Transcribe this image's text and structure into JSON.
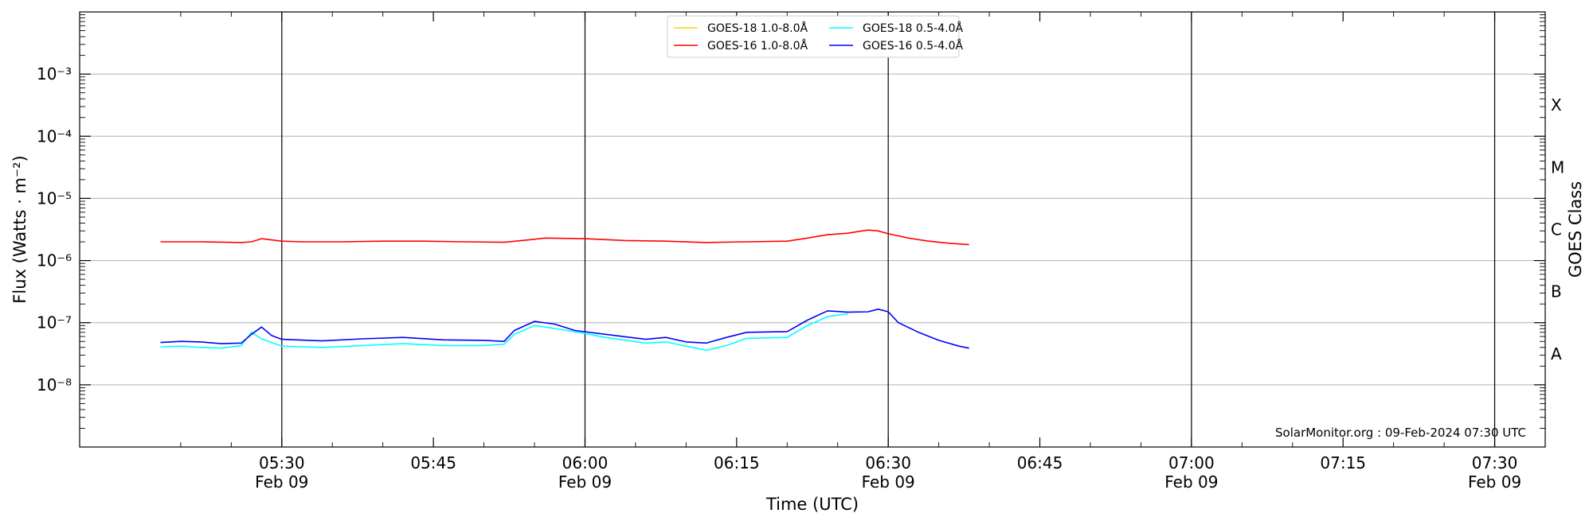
{
  "chart_data": {
    "type": "line",
    "y_scale": "log",
    "xlabel": "Time (UTC)",
    "ylabel": "Flux (Watts · m⁻²)",
    "ylabel_right": "GOES Class",
    "xlim": [
      "2024-02-09 05:10",
      "2024-02-09 07:35"
    ],
    "ylim": [
      1e-09,
      0.01
    ],
    "y_ticks": [
      {
        "value": 1e-08,
        "label": "10⁻⁸"
      },
      {
        "value": 1e-07,
        "label": "10⁻⁷"
      },
      {
        "value": 1e-06,
        "label": "10⁻⁶"
      },
      {
        "value": 1e-05,
        "label": "10⁻⁵"
      },
      {
        "value": 0.0001,
        "label": "10⁻⁴"
      },
      {
        "value": 0.001,
        "label": "10⁻³"
      }
    ],
    "x_ticks": [
      {
        "time": "05:30",
        "label1": "05:30",
        "label2": "Feb 09"
      },
      {
        "time": "05:45",
        "label1": "05:45",
        "label2": ""
      },
      {
        "time": "06:00",
        "label1": "06:00",
        "label2": "Feb 09"
      },
      {
        "time": "06:15",
        "label1": "06:15",
        "label2": ""
      },
      {
        "time": "06:30",
        "label1": "06:30",
        "label2": "Feb 09"
      },
      {
        "time": "06:45",
        "label1": "06:45",
        "label2": ""
      },
      {
        "time": "07:00",
        "label1": "07:00",
        "label2": "Feb 09"
      },
      {
        "time": "07:15",
        "label1": "07:15",
        "label2": ""
      },
      {
        "time": "07:30",
        "label1": "07:30",
        "label2": "Feb 09"
      }
    ],
    "vertical_lines": [
      "05:30",
      "06:00",
      "06:30",
      "07:00",
      "07:30"
    ],
    "goes_classes": [
      {
        "label": "A",
        "value": 3.16e-08
      },
      {
        "label": "B",
        "value": 3.16e-07
      },
      {
        "label": "C",
        "value": 3.16e-06
      },
      {
        "label": "M",
        "value": 3.16e-05
      },
      {
        "label": "X",
        "value": 0.000316
      }
    ],
    "grid": true,
    "legend_position": "top-center",
    "annotation": "SolarMonitor.org : 09-Feb-2024 07:30 UTC",
    "series": [
      {
        "name": "GOES-18 1.0-8.0Å",
        "color": "#ffd700",
        "points": []
      },
      {
        "name": "GOES-16 1.0-8.0Å",
        "color": "#ff0000",
        "points": [
          [
            "05:18",
            2e-06
          ],
          [
            "05:20",
            2e-06
          ],
          [
            "05:22",
            2e-06
          ],
          [
            "05:24",
            1.98e-06
          ],
          [
            "05:26",
            1.95e-06
          ],
          [
            "05:27",
            2e-06
          ],
          [
            "05:28",
            2.25e-06
          ],
          [
            "05:30",
            2.05e-06
          ],
          [
            "05:32",
            2e-06
          ],
          [
            "05:36",
            2e-06
          ],
          [
            "05:40",
            2.05e-06
          ],
          [
            "05:44",
            2.05e-06
          ],
          [
            "05:48",
            2e-06
          ],
          [
            "05:52",
            1.97e-06
          ],
          [
            "05:55",
            2.2e-06
          ],
          [
            "05:56",
            2.3e-06
          ],
          [
            "06:00",
            2.25e-06
          ],
          [
            "06:04",
            2.1e-06
          ],
          [
            "06:08",
            2.05e-06
          ],
          [
            "06:12",
            1.95e-06
          ],
          [
            "06:16",
            2e-06
          ],
          [
            "06:20",
            2.05e-06
          ],
          [
            "06:22",
            2.3e-06
          ],
          [
            "06:24",
            2.6e-06
          ],
          [
            "06:26",
            2.75e-06
          ],
          [
            "06:28",
            3.1e-06
          ],
          [
            "06:29",
            3e-06
          ],
          [
            "06:30",
            2.7e-06
          ],
          [
            "06:32",
            2.3e-06
          ],
          [
            "06:34",
            2.05e-06
          ],
          [
            "06:36",
            1.9e-06
          ],
          [
            "06:38",
            1.8e-06
          ]
        ]
      },
      {
        "name": "GOES-18 0.5-4.0Å",
        "color": "#00ffff",
        "points": [
          [
            "05:18",
            4.1e-08
          ],
          [
            "05:20",
            4.2e-08
          ],
          [
            "05:22",
            4e-08
          ],
          [
            "05:24",
            3.9e-08
          ],
          [
            "05:26",
            4.3e-08
          ],
          [
            "05:27",
            7e-08
          ],
          [
            "05:28",
            5.5e-08
          ],
          [
            "05:30",
            4.2e-08
          ],
          [
            "05:34",
            4e-08
          ],
          [
            "05:38",
            4.3e-08
          ],
          [
            "05:42",
            4.6e-08
          ],
          [
            "05:46",
            4.3e-08
          ],
          [
            "05:50",
            4.3e-08
          ],
          [
            "05:52",
            4.5e-08
          ],
          [
            "05:53",
            6.5e-08
          ],
          [
            "05:55",
            9e-08
          ],
          [
            "05:58",
            7.6e-08
          ],
          [
            "06:00",
            6.7e-08
          ],
          [
            "06:02",
            5.8e-08
          ],
          [
            "06:06",
            4.7e-08
          ],
          [
            "06:08",
            4.9e-08
          ],
          [
            "06:10",
            4.2e-08
          ],
          [
            "06:12",
            3.6e-08
          ],
          [
            "06:14",
            4.3e-08
          ],
          [
            "06:16",
            5.6e-08
          ],
          [
            "06:20",
            5.8e-08
          ],
          [
            "06:22",
            9e-08
          ],
          [
            "06:24",
            1.25e-07
          ],
          [
            "06:26",
            1.4e-07
          ]
        ]
      },
      {
        "name": "GOES-16 0.5-4.0Å",
        "color": "#0000ff",
        "points": [
          [
            "05:18",
            4.8e-08
          ],
          [
            "05:20",
            5e-08
          ],
          [
            "05:22",
            4.9e-08
          ],
          [
            "05:24",
            4.6e-08
          ],
          [
            "05:26",
            4.7e-08
          ],
          [
            "05:27",
            6.5e-08
          ],
          [
            "05:28",
            8.5e-08
          ],
          [
            "05:29",
            6.2e-08
          ],
          [
            "05:30",
            5.4e-08
          ],
          [
            "05:34",
            5.1e-08
          ],
          [
            "05:38",
            5.5e-08
          ],
          [
            "05:42",
            5.8e-08
          ],
          [
            "05:46",
            5.3e-08
          ],
          [
            "05:50",
            5.2e-08
          ],
          [
            "05:52",
            5e-08
          ],
          [
            "05:53",
            7.5e-08
          ],
          [
            "05:55",
            1.05e-07
          ],
          [
            "05:57",
            9.5e-08
          ],
          [
            "05:59",
            7.5e-08
          ],
          [
            "06:02",
            6.5e-08
          ],
          [
            "06:06",
            5.4e-08
          ],
          [
            "06:08",
            5.8e-08
          ],
          [
            "06:10",
            4.9e-08
          ],
          [
            "06:12",
            4.7e-08
          ],
          [
            "06:14",
            5.8e-08
          ],
          [
            "06:16",
            7e-08
          ],
          [
            "06:20",
            7.2e-08
          ],
          [
            "06:22",
            1.1e-07
          ],
          [
            "06:24",
            1.55e-07
          ],
          [
            "06:26",
            1.48e-07
          ],
          [
            "06:28",
            1.5e-07
          ],
          [
            "06:29",
            1.65e-07
          ],
          [
            "06:30",
            1.5e-07
          ],
          [
            "06:31",
            1e-07
          ],
          [
            "06:33",
            7e-08
          ],
          [
            "06:35",
            5.2e-08
          ],
          [
            "06:37",
            4.2e-08
          ],
          [
            "06:38",
            3.9e-08
          ]
        ]
      }
    ]
  }
}
